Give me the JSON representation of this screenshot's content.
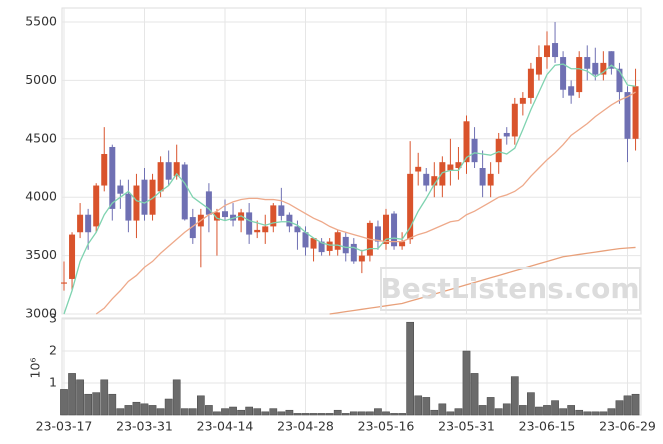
{
  "chart_data": [
    {
      "type": "candlestick",
      "categories": [
        "23-03-17",
        null,
        null,
        null,
        null,
        null,
        null,
        null,
        null,
        null,
        "23-03-31",
        null,
        null,
        null,
        null,
        null,
        null,
        null,
        null,
        null,
        "23-04-14",
        null,
        null,
        null,
        null,
        null,
        null,
        null,
        null,
        null,
        "23-04-28",
        null,
        null,
        null,
        null,
        null,
        null,
        null,
        null,
        null,
        "23-05-16",
        null,
        null,
        null,
        null,
        null,
        null,
        null,
        null,
        null,
        "23-05-31",
        null,
        null,
        null,
        null,
        null,
        null,
        null,
        null,
        null,
        "23-06-15",
        null,
        null,
        null,
        null,
        null,
        null,
        null,
        null,
        null,
        "23-06-29",
        null
      ],
      "open": [
        3260,
        3300,
        3700,
        3850,
        3750,
        4100,
        4430,
        4100,
        4030,
        3800,
        4150,
        3850,
        4050,
        4300,
        4180,
        4280,
        3830,
        3750,
        4050,
        3800,
        3880,
        3850,
        3800,
        3870,
        3700,
        3700,
        3750,
        3930,
        3850,
        3750,
        3700,
        3560,
        3620,
        3540,
        3550,
        3660,
        3600,
        3450,
        3500,
        3750,
        3600,
        3860,
        3580,
        3640,
        4220,
        4200,
        4100,
        4100,
        4230,
        4250,
        4300,
        4500,
        4250,
        4100,
        4300,
        4550,
        4520,
        4800,
        4850,
        5050,
        5200,
        5320,
        5200,
        4950,
        4900,
        5200,
        5150,
        5050,
        5250,
        5100,
        4900,
        4500
      ],
      "high": [
        3450,
        3700,
        3950,
        3900,
        4120,
        4600,
        4450,
        4150,
        4150,
        4200,
        4250,
        4200,
        4350,
        4400,
        4450,
        4300,
        3900,
        3900,
        4120,
        3900,
        3980,
        3950,
        3900,
        3950,
        3800,
        3850,
        3950,
        4080,
        3870,
        3800,
        3750,
        3650,
        3650,
        3650,
        3720,
        3700,
        3650,
        3550,
        3800,
        3800,
        3900,
        3880,
        3700,
        4480,
        4380,
        4250,
        4300,
        4350,
        4500,
        4430,
        4700,
        4600,
        4400,
        4300,
        4550,
        4600,
        4850,
        4900,
        5150,
        5300,
        5420,
        5500,
        5250,
        5000,
        5250,
        5300,
        5280,
        5250,
        5250,
        5150,
        4950,
        5100
      ],
      "low": [
        3200,
        3200,
        3650,
        3550,
        3700,
        4050,
        3800,
        3900,
        3700,
        3650,
        3800,
        3800,
        4000,
        4100,
        4150,
        3800,
        3600,
        3400,
        3700,
        3500,
        3800,
        3750,
        3700,
        3600,
        3650,
        3600,
        3700,
        3800,
        3700,
        3550,
        3500,
        3450,
        3500,
        3500,
        3500,
        3450,
        3430,
        3350,
        3450,
        3550,
        3550,
        3550,
        3550,
        3600,
        4100,
        4050,
        4000,
        4000,
        4100,
        4150,
        4200,
        4250,
        4000,
        4000,
        4200,
        4450,
        4450,
        4700,
        4800,
        5000,
        5100,
        5150,
        4850,
        4800,
        4850,
        5000,
        5000,
        5000,
        5050,
        4800,
        4300,
        4400
      ],
      "close": [
        3270,
        3680,
        3850,
        3700,
        4100,
        4370,
        3900,
        4030,
        3800,
        4100,
        3850,
        4150,
        4300,
        4150,
        4300,
        3810,
        3650,
        3850,
        3850,
        3870,
        3830,
        3800,
        3870,
        3680,
        3720,
        3750,
        3930,
        3840,
        3750,
        3700,
        3570,
        3650,
        3530,
        3620,
        3700,
        3520,
        3450,
        3500,
        3780,
        3620,
        3850,
        3580,
        3620,
        4200,
        4260,
        4100,
        4180,
        4300,
        4280,
        4300,
        4650,
        4300,
        4100,
        4200,
        4500,
        4520,
        4800,
        4850,
        5100,
        5200,
        5300,
        5200,
        4920,
        4870,
        5200,
        5100,
        5050,
        5150,
        5100,
        4900,
        4500,
        4950
      ],
      "up_color": "#d9532c",
      "down_color": "#6f70b3",
      "series": [
        {
          "color": "#7fd3b0",
          "values": [
            3000,
            3200,
            3450,
            3600,
            3700,
            3850,
            3950,
            4000,
            4050,
            3970,
            3950,
            3990,
            4050,
            4100,
            4200,
            4120,
            4000,
            3950,
            3900,
            3820,
            3800,
            3820,
            3840,
            3800,
            3780,
            3760,
            3780,
            3790,
            3790,
            3760,
            3700,
            3650,
            3610,
            3590,
            3590,
            3570,
            3570,
            3540,
            3560,
            3560,
            3640,
            3650,
            3640,
            3740,
            3880,
            3990,
            4110,
            4210,
            4230,
            4230,
            4340,
            4380,
            4370,
            4360,
            4390,
            4370,
            4420,
            4580,
            4750,
            4900,
            5050,
            5130,
            5140,
            5100,
            5100,
            5080,
            5030,
            5070,
            5130,
            5080,
            4960,
            4950
          ]
        },
        {
          "color": "#eea98a",
          "values": [
            null,
            null,
            null,
            null,
            3000,
            3050,
            3130,
            3200,
            3280,
            3330,
            3400,
            3450,
            3520,
            3580,
            3640,
            3700,
            3750,
            3800,
            3850,
            3880,
            3930,
            3960,
            3980,
            3990,
            3990,
            3980,
            3980,
            3970,
            3940,
            3900,
            3860,
            3820,
            3790,
            3750,
            3720,
            3700,
            3680,
            3660,
            3640,
            3630,
            3620,
            3620,
            3620,
            3650,
            3680,
            3700,
            3730,
            3760,
            3790,
            3800,
            3850,
            3880,
            3920,
            3960,
            4000,
            4020,
            4050,
            4100,
            4180,
            4250,
            4320,
            4380,
            4450,
            4530,
            4580,
            4630,
            4690,
            4740,
            4790,
            4830,
            4860,
            4900
          ]
        },
        {
          "color": "#e8a07a",
          "values": [
            null,
            null,
            null,
            null,
            null,
            null,
            null,
            null,
            null,
            null,
            null,
            null,
            null,
            null,
            null,
            null,
            null,
            null,
            null,
            null,
            null,
            null,
            null,
            null,
            null,
            null,
            null,
            null,
            null,
            null,
            null,
            null,
            null,
            3000,
            3010,
            3020,
            3030,
            3040,
            3050,
            3060,
            3070,
            3080,
            3090,
            3110,
            3130,
            3150,
            3170,
            3190,
            3210,
            3230,
            3250,
            3270,
            3290,
            3310,
            3330,
            3350,
            3370,
            3390,
            3410,
            3430,
            3450,
            3470,
            3490,
            3500,
            3510,
            3520,
            3530,
            3540,
            3550,
            3560,
            3565,
            3570
          ]
        }
      ],
      "ylim": [
        3000,
        5620
      ],
      "yticks": [
        3000,
        3500,
        4000,
        4500,
        5000,
        5500
      ],
      "grid": true,
      "watermark": "BestListens.com"
    },
    {
      "type": "bar",
      "ylabel": "10⁶",
      "color": "#6b6b6b",
      "values": [
        0.8,
        1.3,
        1.1,
        0.65,
        0.7,
        1.1,
        0.65,
        0.2,
        0.3,
        0.4,
        0.35,
        0.3,
        0.2,
        0.5,
        1.1,
        0.2,
        0.2,
        0.6,
        0.3,
        0.1,
        0.2,
        0.25,
        0.15,
        0.25,
        0.2,
        0.1,
        0.2,
        0.1,
        0.15,
        0.05,
        0.05,
        0.05,
        0.05,
        0.05,
        0.15,
        0.05,
        0.1,
        0.1,
        0.1,
        0.2,
        0.1,
        0.05,
        0.05,
        2.9,
        0.6,
        0.55,
        0.15,
        0.35,
        0.1,
        0.2,
        2.0,
        1.3,
        0.3,
        0.55,
        0.2,
        0.35,
        1.2,
        0.3,
        0.7,
        0.25,
        0.3,
        0.45,
        0.2,
        0.3,
        0.15,
        0.1,
        0.1,
        0.1,
        0.2,
        0.45,
        0.6,
        0.65
      ],
      "ylim": [
        0,
        3
      ],
      "yticks": [
        1,
        2,
        3
      ],
      "grid": true
    }
  ]
}
